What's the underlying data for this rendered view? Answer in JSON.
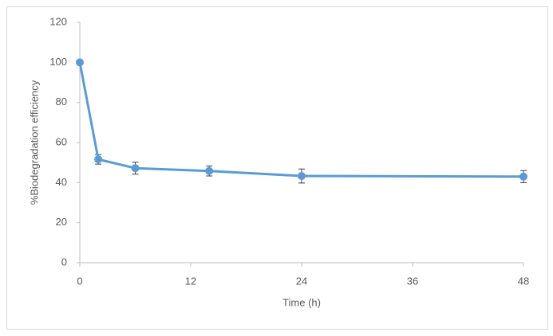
{
  "chart_data": {
    "type": "line",
    "x_label": "Time (h)",
    "y_label": "%Biodegradation efficiency",
    "x": [
      0,
      2,
      6,
      14,
      24,
      48
    ],
    "series": [
      {
        "color": "#5b9bd5",
        "values": [
          100,
          51.6,
          47.2,
          45.8,
          43.3,
          43.0
        ],
        "errors": [
          0,
          2.4,
          3.0,
          2.5,
          3.5,
          3.0
        ]
      }
    ],
    "xlim": [
      0,
      48
    ],
    "xticks": [
      0,
      12,
      24,
      36,
      48
    ],
    "ylim": [
      0,
      120
    ],
    "yticks": [
      0,
      20,
      40,
      60,
      80,
      100,
      120
    ],
    "grid": false
  }
}
